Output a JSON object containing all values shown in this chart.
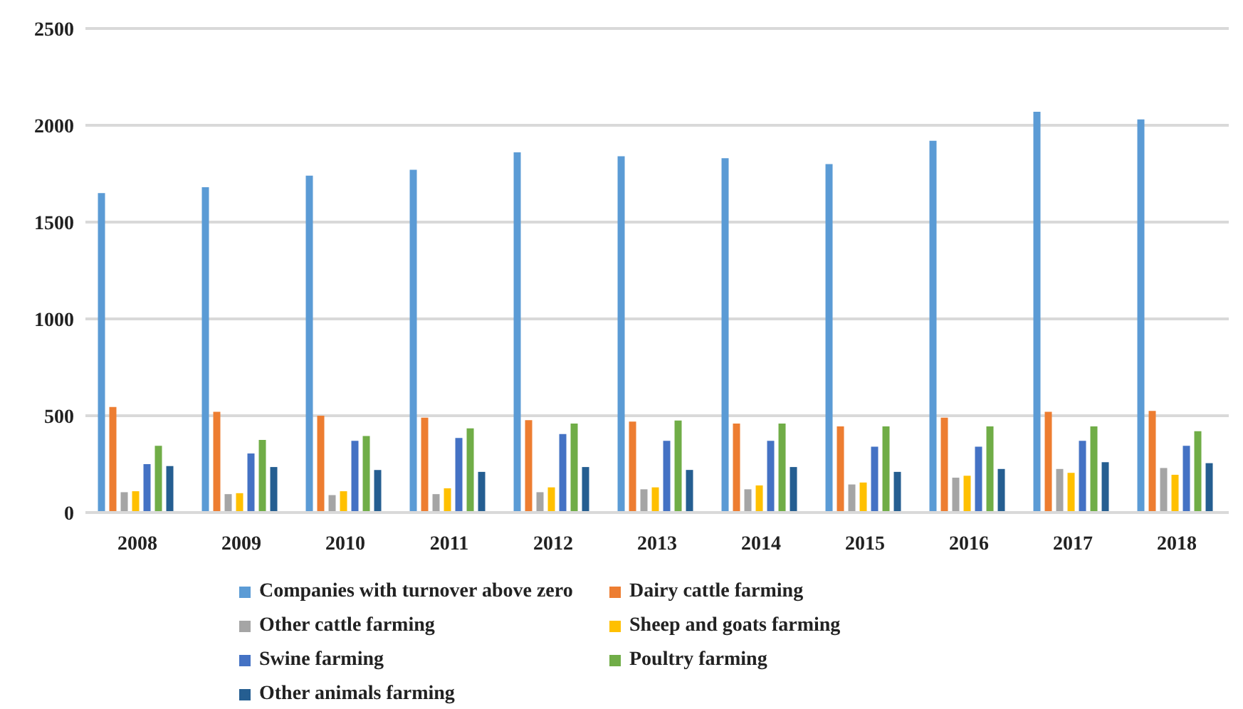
{
  "chart_data": {
    "type": "bar",
    "categories": [
      "2008",
      "2009",
      "2010",
      "2011",
      "2012",
      "2013",
      "2014",
      "2015",
      "2016",
      "2017",
      "2018"
    ],
    "series": [
      {
        "name": "Companies with turnover above zero",
        "color": "#5b9bd5",
        "values": [
          1650,
          1680,
          1740,
          1770,
          1860,
          1840,
          1830,
          1800,
          1920,
          2070,
          2030
        ]
      },
      {
        "name": "Dairy cattle farming",
        "color": "#ed7d31",
        "values": [
          545,
          520,
          500,
          490,
          477,
          470,
          460,
          445,
          490,
          520,
          525
        ]
      },
      {
        "name": "Other cattle farming",
        "color": "#a5a5a5",
        "values": [
          105,
          95,
          90,
          95,
          105,
          120,
          120,
          145,
          180,
          225,
          230
        ]
      },
      {
        "name": "Sheep and goats farming",
        "color": "#ffc000",
        "values": [
          110,
          100,
          110,
          125,
          130,
          130,
          140,
          155,
          190,
          205,
          195
        ]
      },
      {
        "name": "Swine farming",
        "color": "#4472c4",
        "values": [
          250,
          305,
          370,
          385,
          405,
          370,
          370,
          340,
          340,
          370,
          345
        ]
      },
      {
        "name": "Poultry farming",
        "color": "#70ad47",
        "values": [
          345,
          375,
          395,
          435,
          460,
          475,
          460,
          445,
          445,
          445,
          420
        ]
      },
      {
        "name": "Other animals farming",
        "color": "#255e91",
        "values": [
          240,
          235,
          220,
          210,
          235,
          220,
          235,
          210,
          225,
          260,
          255
        ]
      }
    ],
    "ylim": [
      0,
      2500
    ],
    "yticks": [
      0,
      500,
      1000,
      1500,
      2000,
      2500
    ],
    "grid": "y",
    "legend": "bottom"
  }
}
